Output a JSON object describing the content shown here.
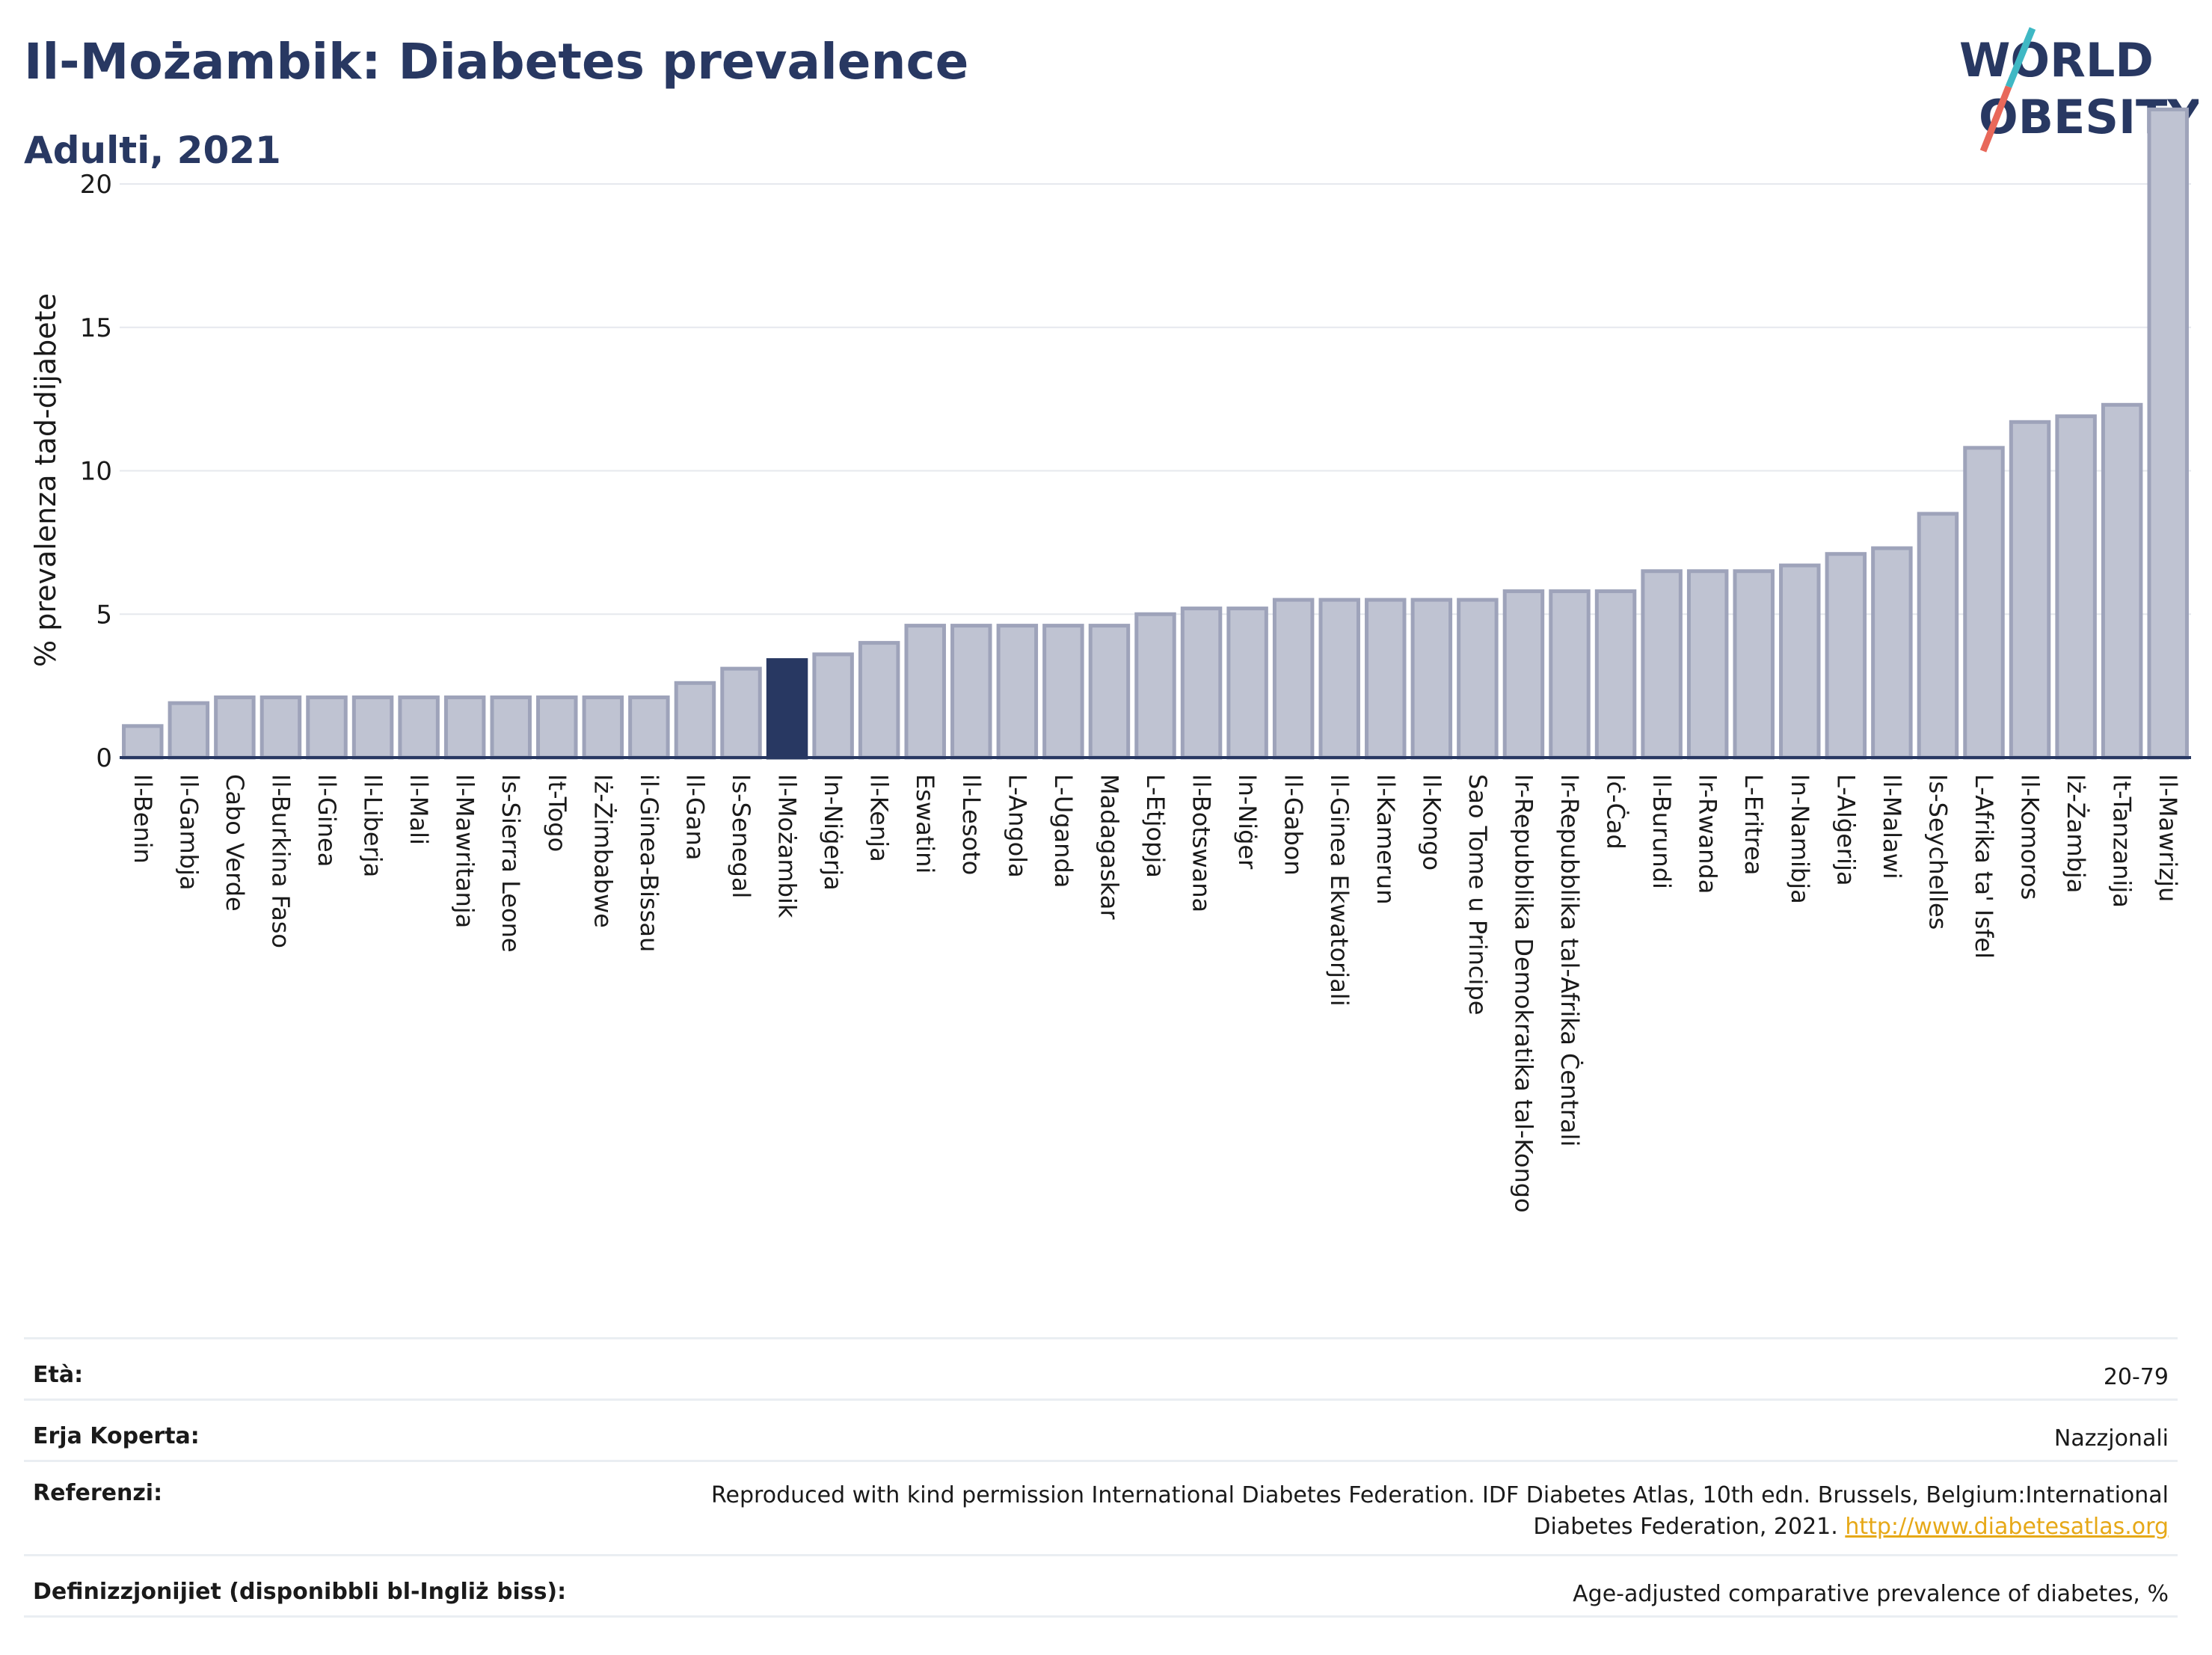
{
  "header": {
    "title": "Il-Możambik: Diabetes prevalence",
    "subtitle": "Adulti, 2021",
    "logo_line1": "WORLD",
    "logo_line2": "OBESITY"
  },
  "colors": {
    "bar": "#bfc3d2",
    "bar_stroke": "#9ea3ba",
    "highlight": "#283862",
    "grid": "#e6e8ee",
    "logo_slash_top": "#3fb8c4",
    "logo_slash_bottom": "#e8685a"
  },
  "chart_data": {
    "type": "bar",
    "title": "Il-Możambik: Diabetes prevalence",
    "subtitle": "Adulti, 2021",
    "ylabel": "% prevalenza tad-dijabete",
    "xlabel": "",
    "ylim": [
      0,
      23
    ],
    "yticks": [
      0,
      5,
      10,
      15,
      20
    ],
    "grid": true,
    "highlight": "Il-Możambik",
    "categories": [
      "Il-Benin",
      "Il-Gambja",
      "Cabo Verde",
      "Il-Burkina Faso",
      "Il-Ginea",
      "Il-Liberja",
      "Il-Mali",
      "Il-Mawritanja",
      "Is-Sierra Leone",
      "It-Togo",
      "Iż-Żimbabwe",
      "il-Ginea-Bissau",
      "Il-Gana",
      "Is-Senegal",
      "Il-Możambik",
      "In-Niġerja",
      "Il-Kenja",
      "Eswatini",
      "Il-Lesoto",
      "L-Angola",
      "L-Uganda",
      "Madagaskar",
      "L-Etjopja",
      "Il-Botswana",
      "In-Niġer",
      "Il-Gabon",
      "Il-Ginea Ekwatorjali",
      "Il-Kamerun",
      "Il-Kongo",
      "Sao Tome u Principe",
      "Ir-Repubblika Demokratika tal-Kongo",
      "Ir-Repubblika tal-Afrika Ċentrali",
      "Iċ-Ċad",
      "Il-Burundi",
      "Ir-Rwanda",
      "L-Eritrea",
      "In-Namibja",
      "L-Alġerija",
      "Il-Malawi",
      "Is-Seychelles",
      "L-Afrika ta' Isfel",
      "Il-Komoros",
      "Iż-Żambja",
      "It-Tanzanija",
      "Il-Mawrizju"
    ],
    "values": [
      1.1,
      1.9,
      2.1,
      2.1,
      2.1,
      2.1,
      2.1,
      2.1,
      2.1,
      2.1,
      2.1,
      2.1,
      2.6,
      3.1,
      3.4,
      3.6,
      4.0,
      4.6,
      4.6,
      4.6,
      4.6,
      4.6,
      5.0,
      5.2,
      5.2,
      5.5,
      5.5,
      5.5,
      5.5,
      5.5,
      5.8,
      5.8,
      5.8,
      6.5,
      6.5,
      6.5,
      6.7,
      7.1,
      7.3,
      8.5,
      10.8,
      11.7,
      11.9,
      12.3,
      22.6
    ]
  },
  "info": {
    "age_label": "Età:",
    "age_value": "20-79",
    "coverage_label": "Erja Koperta:",
    "coverage_value": "Nazzjonali",
    "refs_label": "Referenzi:",
    "refs_text": "Reproduced with kind permission International Diabetes Federation.  IDF Diabetes Atlas, 10th edn. Brussels, Belgium:International Diabetes Federation, 2021.",
    "refs_link": "http://www.diabetesatlas.org",
    "defs_label": "Definizzjonijiet (disponibbli bl-Ingliż biss):",
    "defs_value": "Age-adjusted comparative prevalence of diabetes, %"
  }
}
